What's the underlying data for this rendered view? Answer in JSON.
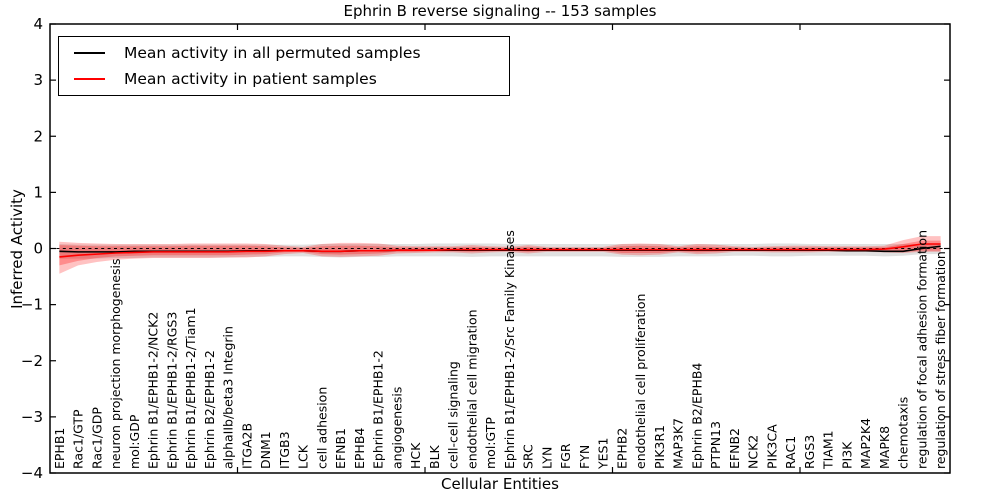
{
  "chart_data": {
    "type": "line",
    "title": "Ephrin B reverse signaling -- 153 samples",
    "xlabel": "Cellular Entities",
    "ylabel": "Inferred Activity",
    "ylim": [
      -4,
      4
    ],
    "xlim": [
      0,
      48
    ],
    "grid": false,
    "yticks": [
      4,
      3,
      2,
      1,
      0,
      -1,
      -2,
      -3,
      -4
    ],
    "ytick_labels": [
      "4",
      "3",
      "2",
      "1",
      "0",
      "−1",
      "−2",
      "−3",
      "−4"
    ],
    "xticks": [
      10,
      20,
      30,
      40
    ],
    "legend": {
      "position": "upper left",
      "entries": [
        {
          "label": "Mean activity in all permuted samples",
          "color": "#000000"
        },
        {
          "label": "Mean activity in patient samples",
          "color": "#ff0000"
        }
      ]
    },
    "zero_line": {
      "y": 0,
      "style": "dashed",
      "color": "#000000"
    },
    "categories": [
      "EPHB1",
      "Rac1/GTP",
      "Rac1/GDP",
      "neuron projection morphogenesis",
      "mol:GDP",
      "Ephrin B1/EPHB1-2/NCK2",
      "Ephrin B1/EPHB1-2/RGS3",
      "Ephrin B1/EPHB1-2/Tiam1",
      "Ephrin B2/EPHB1-2",
      "alphaIIb/beta3 Integrin",
      "ITGA2B",
      "DNM1",
      "ITGB3",
      "LCK",
      "cell adhesion",
      "EFNB1",
      "EPHB4",
      "Ephrin B1/EPHB1-2",
      "angiogenesis",
      "HCK",
      "BLK",
      "cell-cell signaling",
      "endothelial cell migration",
      "mol:GTP",
      "Ephrin B1/EPHB1-2/Src Family Kinases",
      "SRC",
      "LYN",
      "FGR",
      "FYN",
      "YES1",
      "EPHB2",
      "endothelial cell proliferation",
      "PIK3R1",
      "MAP3K7",
      "Ephrin B2/EPHB4",
      "PTPN13",
      "EFNB2",
      "NCK2",
      "PIK3CA",
      "RAC1",
      "RGS3",
      "TIAM1",
      "PI3K",
      "MAP2K4",
      "MAPK8",
      "chemotaxis",
      "regulation of focal adhesion formation",
      "regulation of stress fiber formation"
    ],
    "series": [
      {
        "name": "Mean activity in all permuted samples",
        "color": "#000000",
        "values": [
          -0.05,
          -0.06,
          -0.06,
          -0.06,
          -0.05,
          -0.05,
          -0.05,
          -0.05,
          -0.05,
          -0.05,
          -0.04,
          -0.04,
          -0.04,
          -0.04,
          -0.05,
          -0.05,
          -0.04,
          -0.04,
          -0.03,
          -0.03,
          -0.03,
          -0.03,
          -0.03,
          -0.03,
          -0.03,
          -0.03,
          -0.03,
          -0.03,
          -0.03,
          -0.03,
          -0.03,
          -0.03,
          -0.03,
          -0.03,
          -0.03,
          -0.03,
          -0.03,
          -0.03,
          -0.03,
          -0.03,
          -0.03,
          -0.03,
          -0.04,
          -0.04,
          -0.05,
          -0.05,
          0.0,
          0.04
        ]
      },
      {
        "name": "Mean activity in patient samples",
        "color": "#ff0000",
        "values": [
          -0.15,
          -0.12,
          -0.1,
          -0.08,
          -0.07,
          -0.06,
          -0.06,
          -0.06,
          -0.06,
          -0.06,
          -0.05,
          -0.05,
          -0.04,
          -0.04,
          -0.05,
          -0.05,
          -0.04,
          -0.04,
          -0.03,
          -0.03,
          -0.03,
          -0.02,
          -0.02,
          -0.02,
          -0.02,
          -0.02,
          -0.02,
          -0.02,
          -0.02,
          -0.02,
          -0.02,
          -0.02,
          -0.02,
          -0.02,
          -0.02,
          -0.02,
          -0.02,
          -0.02,
          -0.02,
          -0.02,
          -0.02,
          -0.02,
          -0.02,
          -0.02,
          -0.01,
          0.03,
          0.08,
          0.08
        ]
      }
    ],
    "bands": [
      {
        "name": "permuted-range",
        "color": "#000000",
        "alpha": 0.12,
        "upper": [
          0.08,
          0.07,
          0.07,
          0.07,
          0.07,
          0.07,
          0.07,
          0.07,
          0.07,
          0.07,
          0.07,
          0.07,
          0.07,
          0.07,
          0.08,
          0.08,
          0.08,
          0.08,
          0.08,
          0.08,
          0.09,
          0.09,
          0.09,
          0.09,
          0.08,
          0.08,
          0.08,
          0.08,
          0.08,
          0.08,
          0.08,
          0.08,
          0.08,
          0.08,
          0.08,
          0.08,
          0.08,
          0.08,
          0.09,
          0.09,
          0.08,
          0.08,
          0.08,
          0.08,
          0.08,
          0.08,
          0.08,
          0.08
        ],
        "lower": [
          -0.18,
          -0.18,
          -0.18,
          -0.17,
          -0.17,
          -0.16,
          -0.16,
          -0.16,
          -0.16,
          -0.16,
          -0.15,
          -0.15,
          -0.14,
          -0.14,
          -0.15,
          -0.16,
          -0.15,
          -0.15,
          -0.14,
          -0.14,
          -0.14,
          -0.14,
          -0.15,
          -0.14,
          -0.14,
          -0.14,
          -0.14,
          -0.14,
          -0.14,
          -0.14,
          -0.15,
          -0.15,
          -0.15,
          -0.14,
          -0.14,
          -0.14,
          -0.13,
          -0.13,
          -0.14,
          -0.14,
          -0.13,
          -0.13,
          -0.13,
          -0.13,
          -0.14,
          -0.13,
          -0.1,
          -0.1
        ]
      },
      {
        "name": "patient-range-outer",
        "color": "#ff0000",
        "alpha": 0.24,
        "upper": [
          0.12,
          0.1,
          0.09,
          0.08,
          0.08,
          0.08,
          0.08,
          0.09,
          0.09,
          0.09,
          0.09,
          0.08,
          0.05,
          0.03,
          0.08,
          0.1,
          0.1,
          0.09,
          0.05,
          0.04,
          0.04,
          0.04,
          0.06,
          0.04,
          0.03,
          0.06,
          0.03,
          0.03,
          0.03,
          0.03,
          0.08,
          0.09,
          0.08,
          0.04,
          0.08,
          0.07,
          0.04,
          0.03,
          0.04,
          0.05,
          0.05,
          0.04,
          0.04,
          0.04,
          0.05,
          0.15,
          0.22,
          0.22
        ],
        "lower": [
          -0.45,
          -0.3,
          -0.24,
          -0.2,
          -0.18,
          -0.17,
          -0.17,
          -0.17,
          -0.17,
          -0.16,
          -0.16,
          -0.14,
          -0.1,
          -0.08,
          -0.14,
          -0.15,
          -0.14,
          -0.13,
          -0.09,
          -0.08,
          -0.07,
          -0.07,
          -0.09,
          -0.07,
          -0.06,
          -0.09,
          -0.06,
          -0.06,
          -0.06,
          -0.06,
          -0.11,
          -0.12,
          -0.11,
          -0.07,
          -0.1,
          -0.09,
          -0.06,
          -0.06,
          -0.07,
          -0.07,
          -0.07,
          -0.06,
          -0.06,
          -0.06,
          -0.07,
          -0.08,
          -0.06,
          -0.06
        ]
      },
      {
        "name": "patient-range-inner",
        "color": "#ff0000",
        "alpha": 0.28,
        "upper": [
          0.06,
          0.05,
          0.04,
          0.04,
          0.04,
          0.04,
          0.04,
          0.05,
          0.05,
          0.05,
          0.05,
          0.04,
          0.02,
          0.01,
          0.04,
          0.05,
          0.05,
          0.04,
          0.02,
          0.02,
          0.02,
          0.02,
          0.03,
          0.02,
          0.01,
          0.03,
          0.01,
          0.01,
          0.01,
          0.01,
          0.04,
          0.05,
          0.04,
          0.02,
          0.04,
          0.03,
          0.02,
          0.01,
          0.02,
          0.02,
          0.02,
          0.02,
          0.02,
          0.02,
          0.02,
          0.08,
          0.14,
          0.14
        ],
        "lower": [
          -0.3,
          -0.22,
          -0.17,
          -0.14,
          -0.13,
          -0.12,
          -0.12,
          -0.12,
          -0.12,
          -0.12,
          -0.11,
          -0.1,
          -0.07,
          -0.06,
          -0.1,
          -0.11,
          -0.1,
          -0.09,
          -0.06,
          -0.06,
          -0.05,
          -0.05,
          -0.06,
          -0.05,
          -0.04,
          -0.06,
          -0.04,
          -0.04,
          -0.04,
          -0.04,
          -0.08,
          -0.08,
          -0.08,
          -0.05,
          -0.07,
          -0.06,
          -0.04,
          -0.04,
          -0.05,
          -0.05,
          -0.05,
          -0.04,
          -0.04,
          -0.04,
          -0.05,
          -0.06,
          -0.04,
          -0.04
        ]
      }
    ]
  }
}
